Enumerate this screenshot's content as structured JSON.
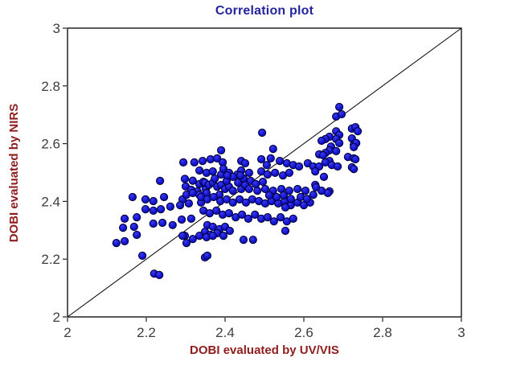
{
  "chart_data": {
    "type": "scatter",
    "title": "Correlation plot",
    "xlabel": "DOBI evaluated by UV/VIS",
    "ylabel": "DOBI evaluated by NIRS",
    "xlim": [
      2,
      3
    ],
    "ylim": [
      2,
      3
    ],
    "grid": false,
    "legend": "none",
    "x_tick_values": [
      2,
      2.2,
      2.4,
      2.6,
      2.8,
      3
    ],
    "x_tick_labels": [
      "2",
      "2.2",
      "2.4",
      "2.6",
      "2.8",
      "3"
    ],
    "y_tick_values": [
      2,
      2.2,
      2.4,
      2.6,
      2.8,
      3
    ],
    "y_tick_labels": [
      "2",
      "2.2",
      "2.4",
      "2.6",
      "2.8",
      "3"
    ],
    "reference_line": {
      "type": "identity",
      "from": [
        2,
        2
      ],
      "to": [
        3,
        3
      ],
      "color": "#000000"
    },
    "colors": {
      "title": "#24249e",
      "axis_label": "#8f1d1d",
      "tick_label": "#3d3d3d",
      "marker_fill": "#1616d2",
      "marker_edge": "#000038",
      "axis_line": "#000000"
    },
    "marker": {
      "shape": "circle",
      "radius_px": 4.6
    },
    "points": [
      [
        2.235,
        2.471
      ],
      [
        2.165,
        2.415
      ],
      [
        2.198,
        2.407
      ],
      [
        2.218,
        2.401
      ],
      [
        2.245,
        2.415
      ],
      [
        2.292,
        2.407
      ],
      [
        2.198,
        2.373
      ],
      [
        2.218,
        2.368
      ],
      [
        2.237,
        2.373
      ],
      [
        2.261,
        2.382
      ],
      [
        2.286,
        2.387
      ],
      [
        2.308,
        2.393
      ],
      [
        2.339,
        2.396
      ],
      [
        2.145,
        2.34
      ],
      [
        2.176,
        2.345
      ],
      [
        2.218,
        2.323
      ],
      [
        2.241,
        2.326
      ],
      [
        2.267,
        2.318
      ],
      [
        2.29,
        2.337
      ],
      [
        2.314,
        2.34
      ],
      [
        2.141,
        2.309
      ],
      [
        2.169,
        2.312
      ],
      [
        2.176,
        2.284
      ],
      [
        2.145,
        2.262
      ],
      [
        2.124,
        2.256
      ],
      [
        2.298,
        2.281
      ],
      [
        2.318,
        2.27
      ],
      [
        2.19,
        2.212
      ],
      [
        2.22,
        2.15
      ],
      [
        2.233,
        2.145
      ],
      [
        2.349,
        2.206
      ],
      [
        2.355,
        2.212
      ],
      [
        2.298,
        2.478
      ],
      [
        2.318,
        2.472
      ],
      [
        2.335,
        2.46
      ],
      [
        2.3,
        2.452
      ],
      [
        2.314,
        2.44
      ],
      [
        2.33,
        2.435
      ],
      [
        2.345,
        2.468
      ],
      [
        2.351,
        2.443
      ],
      [
        2.494,
        2.638
      ],
      [
        2.522,
        2.582
      ],
      [
        2.39,
        2.577
      ],
      [
        2.294,
        2.535
      ],
      [
        2.322,
        2.535
      ],
      [
        2.343,
        2.54
      ],
      [
        2.363,
        2.546
      ],
      [
        2.38,
        2.549
      ],
      [
        2.394,
        2.535
      ],
      [
        2.441,
        2.54
      ],
      [
        2.451,
        2.532
      ],
      [
        2.492,
        2.546
      ],
      [
        2.506,
        2.526
      ],
      [
        2.516,
        2.549
      ],
      [
        2.539,
        2.54
      ],
      [
        2.557,
        2.532
      ],
      [
        2.573,
        2.526
      ],
      [
        2.588,
        2.521
      ],
      [
        2.61,
        2.532
      ],
      [
        2.624,
        2.521
      ],
      [
        2.335,
        2.507
      ],
      [
        2.353,
        2.499
      ],
      [
        2.369,
        2.504
      ],
      [
        2.39,
        2.493
      ],
      [
        2.41,
        2.499
      ],
      [
        2.431,
        2.493
      ],
      [
        2.441,
        2.507
      ],
      [
        2.461,
        2.499
      ],
      [
        2.492,
        2.504
      ],
      [
        2.508,
        2.493
      ],
      [
        2.527,
        2.499
      ],
      [
        2.547,
        2.49
      ],
      [
        2.563,
        2.499
      ],
      [
        2.396,
        2.513
      ],
      [
        2.349,
        2.465
      ],
      [
        2.359,
        2.457
      ],
      [
        2.369,
        2.465
      ],
      [
        2.38,
        2.451
      ],
      [
        2.39,
        2.457
      ],
      [
        2.4,
        2.443
      ],
      [
        2.41,
        2.451
      ],
      [
        2.42,
        2.437
      ],
      [
        2.441,
        2.443
      ],
      [
        2.451,
        2.457
      ],
      [
        2.461,
        2.443
      ],
      [
        2.482,
        2.437
      ],
      [
        2.502,
        2.443
      ],
      [
        2.522,
        2.437
      ],
      [
        2.543,
        2.443
      ],
      [
        2.563,
        2.437
      ],
      [
        2.584,
        2.443
      ],
      [
        2.604,
        2.437
      ],
      [
        2.624,
        2.423
      ],
      [
        2.302,
        2.423
      ],
      [
        2.318,
        2.429
      ],
      [
        2.335,
        2.423
      ],
      [
        2.353,
        2.429
      ],
      [
        2.386,
        2.423
      ],
      [
        2.339,
        2.415
      ],
      [
        2.355,
        2.407
      ],
      [
        2.371,
        2.415
      ],
      [
        2.388,
        2.401
      ],
      [
        2.404,
        2.407
      ],
      [
        2.42,
        2.396
      ],
      [
        2.437,
        2.407
      ],
      [
        2.453,
        2.396
      ],
      [
        2.469,
        2.407
      ],
      [
        2.486,
        2.401
      ],
      [
        2.502,
        2.393
      ],
      [
        2.518,
        2.401
      ],
      [
        2.535,
        2.393
      ],
      [
        2.551,
        2.401
      ],
      [
        2.567,
        2.387
      ],
      [
        2.584,
        2.396
      ],
      [
        2.6,
        2.387
      ],
      [
        2.616,
        2.396
      ],
      [
        2.345,
        2.368
      ],
      [
        2.361,
        2.359
      ],
      [
        2.378,
        2.368
      ],
      [
        2.394,
        2.354
      ],
      [
        2.41,
        2.359
      ],
      [
        2.427,
        2.345
      ],
      [
        2.443,
        2.354
      ],
      [
        2.459,
        2.34
      ],
      [
        2.476,
        2.354
      ],
      [
        2.492,
        2.34
      ],
      [
        2.508,
        2.345
      ],
      [
        2.524,
        2.331
      ],
      [
        2.541,
        2.345
      ],
      [
        2.557,
        2.331
      ],
      [
        2.573,
        2.34
      ],
      [
        2.553,
        2.379
      ],
      [
        2.355,
        2.318
      ],
      [
        2.369,
        2.312
      ],
      [
        2.386,
        2.304
      ],
      [
        2.4,
        2.312
      ],
      [
        2.349,
        2.295
      ],
      [
        2.363,
        2.284
      ],
      [
        2.38,
        2.29
      ],
      [
        2.396,
        2.281
      ],
      [
        2.412,
        2.298
      ],
      [
        2.292,
        2.281
      ],
      [
        2.302,
        2.256
      ],
      [
        2.335,
        2.281
      ],
      [
        2.353,
        2.276
      ],
      [
        2.369,
        2.281
      ],
      [
        2.447,
        2.267
      ],
      [
        2.471,
        2.267
      ],
      [
        2.553,
        2.298
      ],
      [
        2.512,
        2.421
      ],
      [
        2.531,
        2.415
      ],
      [
        2.549,
        2.421
      ],
      [
        2.567,
        2.409
      ],
      [
        2.592,
        2.415
      ],
      [
        2.608,
        2.409
      ],
      [
        2.374,
        2.479
      ],
      [
        2.404,
        2.471
      ],
      [
        2.433,
        2.465
      ],
      [
        2.447,
        2.479
      ],
      [
        2.42,
        2.485
      ],
      [
        2.465,
        2.471
      ],
      [
        2.478,
        2.46
      ],
      [
        2.496,
        2.468
      ],
      [
        2.439,
        2.49
      ],
      [
        2.406,
        2.49
      ],
      [
        2.69,
        2.727
      ],
      [
        2.682,
        2.694
      ],
      [
        2.696,
        2.702
      ],
      [
        2.722,
        2.652
      ],
      [
        2.731,
        2.657
      ],
      [
        2.737,
        2.643
      ],
      [
        2.682,
        2.643
      ],
      [
        2.69,
        2.63
      ],
      [
        2.665,
        2.624
      ],
      [
        2.655,
        2.616
      ],
      [
        2.645,
        2.61
      ],
      [
        2.682,
        2.616
      ],
      [
        2.69,
        2.602
      ],
      [
        2.722,
        2.618
      ],
      [
        2.727,
        2.596
      ],
      [
        2.733,
        2.602
      ],
      [
        2.669,
        2.59
      ],
      [
        2.665,
        2.577
      ],
      [
        2.655,
        2.568
      ],
      [
        2.682,
        2.574
      ],
      [
        2.727,
        2.588
      ],
      [
        2.639,
        2.563
      ],
      [
        2.649,
        2.56
      ],
      [
        2.712,
        2.554
      ],
      [
        2.727,
        2.549
      ],
      [
        2.731,
        2.546
      ],
      [
        2.665,
        2.54
      ],
      [
        2.655,
        2.535
      ],
      [
        2.671,
        2.526
      ],
      [
        2.639,
        2.521
      ],
      [
        2.686,
        2.521
      ],
      [
        2.722,
        2.518
      ],
      [
        2.727,
        2.512
      ],
      [
        2.629,
        2.504
      ],
      [
        2.651,
        2.485
      ],
      [
        2.629,
        2.457
      ],
      [
        2.645,
        2.437
      ],
      [
        2.665,
        2.435
      ],
      [
        2.631,
        2.449
      ],
      [
        2.661,
        2.429
      ]
    ]
  }
}
